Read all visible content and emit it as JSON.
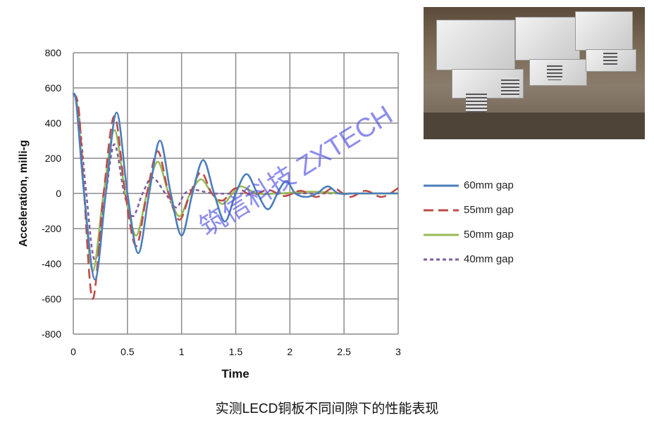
{
  "chart_data": {
    "type": "line",
    "title": "",
    "xlabel": "Time",
    "ylabel": "Acceleration, milli-g",
    "xlim": [
      0,
      3
    ],
    "ylim": [
      -800,
      800
    ],
    "xticks": [
      "0",
      "0.5",
      "1",
      "1.5",
      "2",
      "2.5",
      "3"
    ],
    "yticks": [
      "800",
      "600",
      "400",
      "200",
      "0",
      "-200",
      "-400",
      "-600",
      "-800"
    ],
    "grid": true,
    "legend_position": "right",
    "series": [
      {
        "name": "60mm gap",
        "color": "#4a7ebb",
        "style": "solid",
        "x": [
          0,
          0.03,
          0.1,
          0.2,
          0.3,
          0.4,
          0.5,
          0.6,
          0.7,
          0.8,
          0.9,
          1.0,
          1.1,
          1.2,
          1.3,
          1.4,
          1.5,
          1.6,
          1.7,
          1.8,
          1.9,
          1.97,
          2.05,
          2.15,
          2.25,
          2.35,
          2.45,
          2.6,
          2.8,
          3.0
        ],
        "y": [
          570,
          500,
          0,
          -490,
          0,
          460,
          0,
          -340,
          0,
          300,
          0,
          -240,
          0,
          190,
          0,
          -160,
          0,
          110,
          0,
          -90,
          20,
          70,
          0,
          -20,
          0,
          40,
          0,
          0,
          0,
          0
        ]
      },
      {
        "name": "55mm gap",
        "color": "#be4b48",
        "style": "dashed",
        "x": [
          0,
          0.05,
          0.1,
          0.18,
          0.28,
          0.38,
          0.48,
          0.58,
          0.68,
          0.78,
          0.88,
          0.98,
          1.08,
          1.18,
          1.28,
          1.38,
          1.5,
          1.65,
          1.8,
          1.95,
          2.1,
          2.25,
          2.4,
          2.55,
          2.7,
          2.85,
          3.0
        ],
        "y": [
          570,
          480,
          0,
          -600,
          0,
          440,
          0,
          -300,
          0,
          240,
          0,
          -150,
          0,
          120,
          0,
          -40,
          30,
          -10,
          20,
          -15,
          15,
          -20,
          30,
          -20,
          15,
          -20,
          30
        ]
      },
      {
        "name": "50mm gap",
        "color": "#98b954",
        "style": "solid",
        "x": [
          0,
          0.04,
          0.1,
          0.18,
          0.28,
          0.38,
          0.48,
          0.58,
          0.68,
          0.78,
          0.88,
          0.98,
          1.08,
          1.18,
          1.28,
          1.38,
          1.47,
          1.55,
          1.7,
          1.9,
          2.2,
          2.5,
          3.0
        ],
        "y": [
          570,
          480,
          0,
          -440,
          0,
          360,
          0,
          -240,
          0,
          180,
          0,
          -130,
          0,
          80,
          0,
          -60,
          0,
          40,
          0,
          0,
          10,
          0,
          0
        ]
      },
      {
        "name": "40mm gap",
        "color": "#7d60a0",
        "style": "dotted",
        "x": [
          0,
          0.05,
          0.12,
          0.2,
          0.3,
          0.38,
          0.47,
          0.55,
          0.64,
          0.73,
          0.85,
          0.95,
          1.03,
          1.12,
          1.3,
          1.6,
          2.0,
          2.5,
          3.0
        ],
        "y": [
          570,
          450,
          0,
          -380,
          0,
          280,
          0,
          -130,
          0,
          90,
          0,
          -80,
          0,
          20,
          0,
          0,
          0,
          0,
          0
        ]
      }
    ]
  },
  "caption": "实测LECD铜板不同间隙下的性能表现",
  "watermark": "筑信科技 ZXTECH"
}
